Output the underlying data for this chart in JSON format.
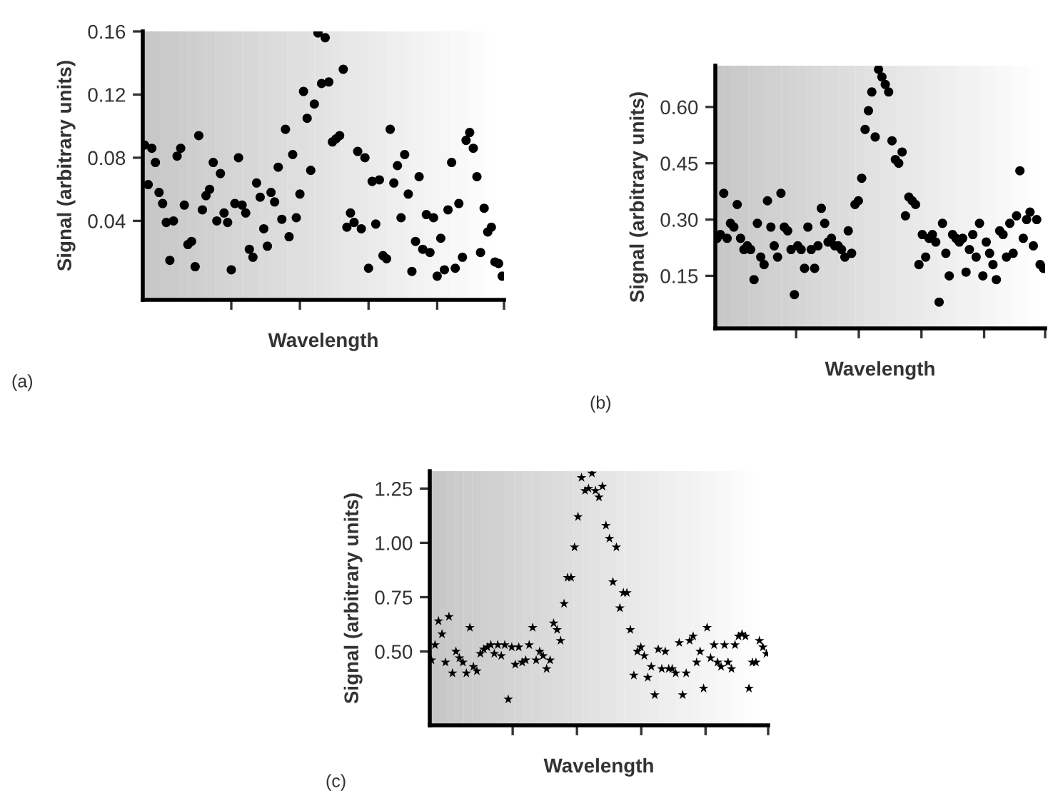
{
  "chart_data": [
    {
      "type": "scatter",
      "xlabel": "Wavelength",
      "ylabel": "Signal (arbitrary units)",
      "annotations": [
        "(a)"
      ],
      "color": "#000000",
      "marker": "circle",
      "grid": false,
      "ylim": [
        -0.01,
        0.16
      ],
      "yticks": [
        {
          "value": 0.04,
          "label": "0.04"
        },
        {
          "value": 0.08,
          "label": "0.08"
        },
        {
          "value": 0.12,
          "label": "0.12"
        },
        {
          "value": 0.16,
          "label": "0.16"
        }
      ],
      "categories": [
        null,
        null,
        null,
        null,
        null,
        null,
        null,
        null,
        null,
        null,
        null,
        null,
        null,
        null,
        null,
        null,
        null,
        null,
        null,
        null,
        null,
        null,
        null,
        null,
        null,
        null,
        null,
        null,
        null,
        null,
        null,
        null,
        null,
        null,
        null,
        null,
        null,
        null,
        null,
        null,
        null,
        null,
        null,
        null,
        null,
        null,
        null,
        null,
        null,
        null,
        null,
        null,
        null,
        null,
        null,
        null,
        null,
        null,
        null,
        null,
        null,
        null,
        null,
        null,
        null,
        null,
        null,
        null,
        null,
        null,
        null,
        null,
        null,
        null,
        null,
        null,
        null,
        null,
        null,
        null,
        null,
        null,
        null,
        null,
        null,
        null,
        null,
        null,
        null,
        null,
        null,
        null,
        null,
        null,
        null,
        null,
        null,
        null,
        null,
        null
      ],
      "values": [
        0.088,
        0.063,
        0.086,
        0.077,
        0.058,
        0.051,
        0.039,
        0.015,
        0.04,
        0.081,
        0.086,
        0.05,
        0.025,
        0.027,
        0.011,
        0.094,
        0.047,
        0.056,
        0.06,
        0.077,
        0.04,
        0.07,
        0.045,
        0.039,
        0.009,
        0.051,
        0.08,
        0.05,
        0.045,
        0.022,
        0.017,
        0.064,
        0.055,
        0.035,
        0.024,
        0.058,
        0.052,
        0.074,
        0.041,
        0.098,
        0.03,
        0.082,
        0.042,
        0.057,
        0.122,
        0.105,
        0.072,
        0.114,
        0.159,
        0.127,
        0.156,
        0.128,
        0.09,
        0.092,
        0.094,
        0.136,
        0.036,
        0.045,
        0.039,
        0.084,
        0.035,
        0.08,
        0.01,
        0.065,
        0.038,
        0.066,
        0.018,
        0.016,
        0.098,
        0.064,
        0.075,
        0.042,
        0.082,
        0.057,
        0.008,
        0.027,
        0.068,
        0.022,
        0.044,
        0.02,
        0.042,
        0.005,
        0.029,
        0.009,
        0.047,
        0.077,
        0.01,
        0.051,
        0.017,
        0.091,
        0.096,
        0.086,
        0.068,
        0.02,
        0.048,
        0.033,
        0.036,
        0.014,
        0.013,
        0.005
      ]
    },
    {
      "type": "scatter",
      "xlabel": "Wavelength",
      "ylabel": "Signal (arbitrary units)",
      "annotations": [
        "(b)"
      ],
      "color": "#000000",
      "marker": "circle",
      "grid": false,
      "ylim": [
        0.01,
        0.71
      ],
      "yticks": [
        {
          "value": 0.15,
          "label": "0.15"
        },
        {
          "value": 0.3,
          "label": "0.30"
        },
        {
          "value": 0.45,
          "label": "0.45"
        },
        {
          "value": 0.6,
          "label": "0.60"
        }
      ],
      "categories": [
        null,
        null,
        null,
        null,
        null,
        null,
        null,
        null,
        null,
        null,
        null,
        null,
        null,
        null,
        null,
        null,
        null,
        null,
        null,
        null,
        null,
        null,
        null,
        null,
        null,
        null,
        null,
        null,
        null,
        null,
        null,
        null,
        null,
        null,
        null,
        null,
        null,
        null,
        null,
        null,
        null,
        null,
        null,
        null,
        null,
        null,
        null,
        null,
        null,
        null,
        null,
        null,
        null,
        null,
        null,
        null,
        null,
        null,
        null,
        null,
        null,
        null,
        null,
        null,
        null,
        null,
        null,
        null,
        null,
        null,
        null,
        null,
        null,
        null,
        null,
        null,
        null,
        null,
        null,
        null,
        null,
        null,
        null,
        null,
        null,
        null,
        null,
        null,
        null,
        null,
        null,
        null,
        null,
        null,
        null,
        null,
        null,
        null
      ],
      "values": [
        0.25,
        0.26,
        0.37,
        0.25,
        0.29,
        0.28,
        0.34,
        0.25,
        0.22,
        0.23,
        0.22,
        0.14,
        0.29,
        0.2,
        0.18,
        0.35,
        0.28,
        0.23,
        0.2,
        0.37,
        0.28,
        0.27,
        0.22,
        0.1,
        0.23,
        0.22,
        0.17,
        0.28,
        0.22,
        0.17,
        0.23,
        0.33,
        0.29,
        0.24,
        0.25,
        0.23,
        0.23,
        0.22,
        0.2,
        0.27,
        0.21,
        0.34,
        0.35,
        0.41,
        0.54,
        0.59,
        0.64,
        0.52,
        0.7,
        0.68,
        0.66,
        0.64,
        0.51,
        0.46,
        0.45,
        0.48,
        0.31,
        0.36,
        0.35,
        0.34,
        0.18,
        0.26,
        0.2,
        0.25,
        0.26,
        0.24,
        0.08,
        0.29,
        0.21,
        0.15,
        0.26,
        0.25,
        0.24,
        0.25,
        0.16,
        0.22,
        0.26,
        0.2,
        0.29,
        0.15,
        0.24,
        0.21,
        0.18,
        0.14,
        0.27,
        0.26,
        0.2,
        0.29,
        0.21,
        0.31,
        0.43,
        0.25,
        0.3,
        0.32,
        0.23,
        0.3,
        0.18,
        0.17
      ]
    },
    {
      "type": "scatter",
      "xlabel": "Wavelength",
      "ylabel": "Signal (arbitrary units)",
      "annotations": [
        "(c)"
      ],
      "color": "#000000",
      "marker": "star",
      "grid": false,
      "ylim": [
        0.16,
        1.33
      ],
      "yticks": [
        {
          "value": 0.5,
          "label": "0.50"
        },
        {
          "value": 0.75,
          "label": "0.75"
        },
        {
          "value": 1.0,
          "label": "1.00"
        },
        {
          "value": 1.25,
          "label": "1.25"
        }
      ],
      "categories": [
        null,
        null,
        null,
        null,
        null,
        null,
        null,
        null,
        null,
        null,
        null,
        null,
        null,
        null,
        null,
        null,
        null,
        null,
        null,
        null,
        null,
        null,
        null,
        null,
        null,
        null,
        null,
        null,
        null,
        null,
        null,
        null,
        null,
        null,
        null,
        null,
        null,
        null,
        null,
        null,
        null,
        null,
        null,
        null,
        null,
        null,
        null,
        null,
        null,
        null,
        null,
        null,
        null,
        null,
        null,
        null,
        null,
        null,
        null,
        null,
        null,
        null,
        null,
        null,
        null,
        null,
        null,
        null,
        null,
        null,
        null,
        null,
        null,
        null,
        null,
        null,
        null,
        null,
        null,
        null,
        null,
        null,
        null,
        null,
        null,
        null,
        null,
        null,
        null,
        null,
        null,
        null,
        null,
        null,
        null,
        null,
        null
      ],
      "values": [
        0.46,
        0.53,
        0.64,
        0.58,
        0.45,
        0.66,
        0.4,
        0.5,
        0.47,
        0.45,
        0.4,
        0.61,
        0.43,
        0.41,
        0.49,
        0.51,
        0.52,
        0.53,
        0.49,
        0.53,
        0.48,
        0.53,
        0.28,
        0.52,
        0.44,
        0.52,
        0.45,
        0.46,
        0.53,
        0.61,
        0.46,
        0.5,
        0.48,
        0.42,
        0.46,
        0.63,
        0.6,
        0.55,
        0.72,
        0.84,
        0.84,
        0.98,
        1.12,
        1.3,
        1.24,
        1.25,
        1.32,
        1.24,
        1.21,
        1.26,
        1.08,
        1.02,
        0.82,
        0.98,
        0.7,
        0.77,
        0.77,
        0.6,
        0.39,
        0.5,
        0.52,
        0.48,
        0.38,
        0.43,
        0.3,
        0.51,
        0.42,
        0.5,
        0.42,
        0.42,
        0.4,
        0.54,
        0.3,
        0.4,
        0.55,
        0.57,
        0.45,
        0.5,
        0.33,
        0.61,
        0.47,
        0.53,
        0.45,
        0.43,
        0.53,
        0.45,
        0.42,
        0.53,
        0.57,
        0.58,
        0.57,
        0.33,
        0.45,
        0.45,
        0.55,
        0.52,
        0.49
      ]
    }
  ]
}
